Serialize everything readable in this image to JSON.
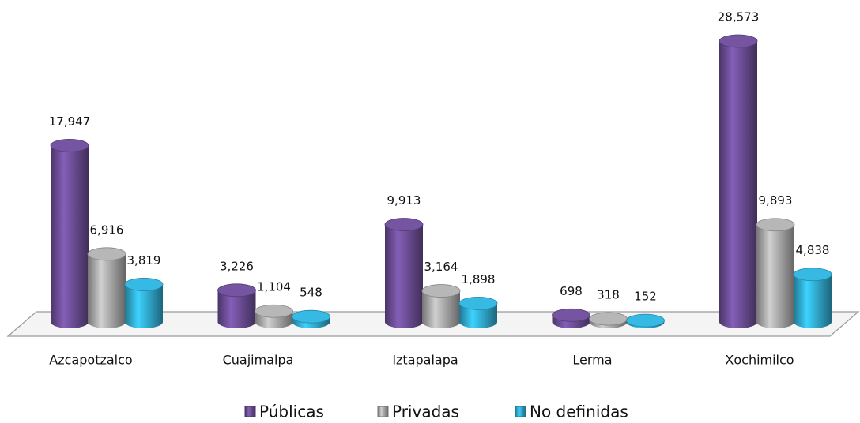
{
  "chart_data": {
    "type": "bar3d",
    "categories": [
      "Azcapotzalco",
      "Cuajimalpa",
      "Iztapalapa",
      "Lerma",
      "Xochimilco"
    ],
    "series": [
      {
        "name": "Públicas",
        "color": "#6a4c93",
        "values": [
          17947,
          3226,
          9913,
          698,
          28573
        ],
        "value_labels": [
          "17,947",
          "3,226",
          "9,913",
          "698",
          "28,573"
        ]
      },
      {
        "name": "Privadas",
        "color": "#a6a6a6",
        "values": [
          6916,
          1104,
          3164,
          318,
          9893
        ],
        "value_labels": [
          "6,916",
          "1,104",
          "3,164",
          "318",
          "9,893"
        ]
      },
      {
        "name": "No definidas",
        "color": "#31a9cf",
        "values": [
          3819,
          548,
          1898,
          152,
          4838
        ],
        "value_labels": [
          "3,819",
          "548",
          "1,898",
          "152",
          "4,838"
        ]
      }
    ],
    "legend": "bottom"
  }
}
